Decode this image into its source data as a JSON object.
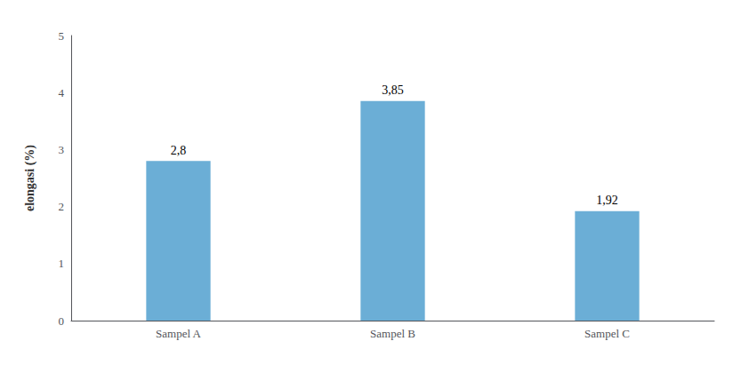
{
  "chart_data": {
    "type": "bar",
    "categories": [
      "Sampel A",
      "Sampel B",
      "Sampel C"
    ],
    "values": [
      2.8,
      3.85,
      1.92
    ],
    "value_labels": [
      "2,8",
      "3,85",
      "1,92"
    ],
    "color": "#6baed6",
    "ylabel": "elongasi (%)",
    "ylim": [
      0,
      5
    ],
    "yticks": [
      0,
      1,
      2,
      3,
      4,
      5
    ],
    "grid": false,
    "data_labels": true
  }
}
